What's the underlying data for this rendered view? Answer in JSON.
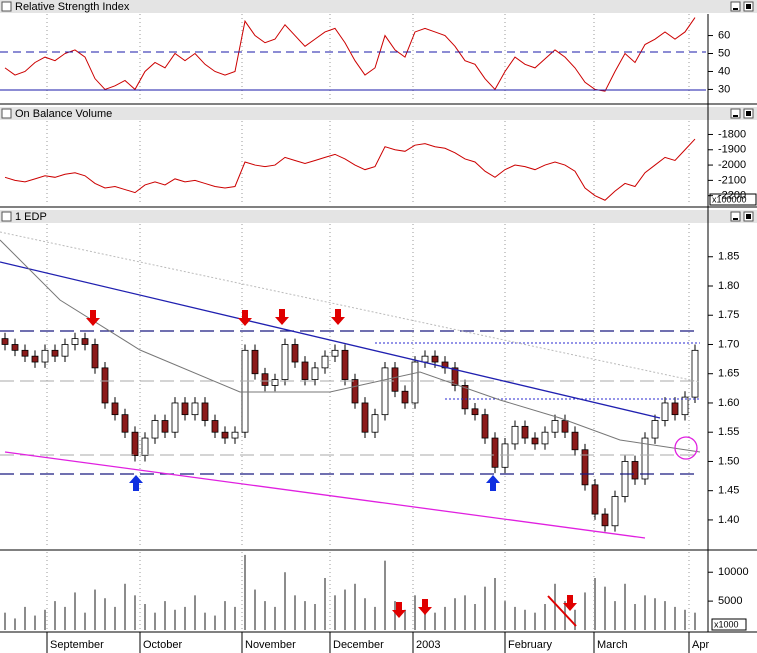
{
  "chart_data": [
    {
      "type": "line",
      "title": "Relative Strength Index",
      "color": "#cc0000",
      "ylim": [
        23,
        72
      ],
      "yticks": [
        30,
        40,
        50,
        60
      ],
      "values": [
        42,
        38,
        40,
        45,
        48,
        46,
        50,
        52,
        48,
        36,
        30,
        32,
        35,
        30,
        40,
        45,
        42,
        50,
        46,
        50,
        44,
        40,
        38,
        40,
        68,
        60,
        56,
        58,
        66,
        60,
        54,
        58,
        62,
        64,
        56,
        46,
        38,
        42,
        60,
        52,
        48,
        62,
        64,
        62,
        60,
        54,
        46,
        44,
        36,
        30,
        40,
        48,
        44,
        42,
        47,
        52,
        48,
        42,
        34,
        30,
        29,
        40,
        50,
        45,
        55,
        58,
        62,
        58,
        62,
        70
      ]
    },
    {
      "type": "line",
      "title": "On Balance Volume",
      "color": "#cc0000",
      "y_unit_label": "x100000",
      "ylim": [
        -2261,
        -1712
      ],
      "yticks": [
        -1800,
        -1900,
        -2000,
        -2100,
        -2200
      ],
      "values": [
        -2080,
        -2100,
        -2110,
        -2090,
        -2070,
        -2080,
        -2060,
        -2050,
        -2070,
        -2120,
        -2150,
        -2140,
        -2160,
        -2180,
        -2130,
        -2110,
        -2130,
        -2090,
        -2110,
        -2100,
        -2120,
        -2140,
        -2150,
        -2140,
        -1980,
        -2000,
        -2010,
        -2000,
        -1950,
        -1970,
        -1990,
        -1970,
        -1950,
        -1930,
        -1960,
        -2000,
        -2030,
        -2010,
        -1880,
        -1900,
        -1910,
        -1870,
        -1860,
        -1880,
        -1890,
        -1920,
        -1960,
        -1980,
        -2040,
        -2080,
        -2030,
        -2000,
        -2010,
        -2030,
        -2000,
        -1980,
        -2000,
        -2040,
        -2150,
        -2200,
        -2230,
        -2170,
        -2120,
        -2140,
        -2050,
        -2000,
        -1950,
        -1970,
        -1900,
        -1830
      ]
    },
    {
      "type": "candlestick",
      "title": "1 EDP",
      "up_color": "#ffffff",
      "down_color": "#8b1a1a",
      "ylim": [
        1.352,
        1.906
      ],
      "yticks": [
        {
          "value": 1.4,
          "label": "1.40"
        },
        1.45,
        {
          "value": 1.5,
          "label": "1.50"
        },
        1.55,
        {
          "value": 1.6,
          "label": "1.60"
        },
        1.65,
        {
          "value": 1.7,
          "label": "1.70"
        },
        1.75,
        {
          "value": 1.8,
          "label": "1.80"
        },
        1.85
      ],
      "open": [
        1.71,
        1.7,
        1.69,
        1.68,
        1.67,
        1.69,
        1.68,
        1.7,
        1.71,
        1.7,
        1.66,
        1.6,
        1.58,
        1.55,
        1.51,
        1.54,
        1.57,
        1.55,
        1.6,
        1.58,
        1.6,
        1.57,
        1.55,
        1.54,
        1.55,
        1.69,
        1.65,
        1.63,
        1.64,
        1.7,
        1.67,
        1.64,
        1.66,
        1.68,
        1.69,
        1.64,
        1.6,
        1.55,
        1.58,
        1.66,
        1.62,
        1.6,
        1.67,
        1.68,
        1.67,
        1.66,
        1.63,
        1.59,
        1.58,
        1.54,
        1.49,
        1.53,
        1.56,
        1.54,
        1.53,
        1.55,
        1.57,
        1.55,
        1.52,
        1.46,
        1.41,
        1.39,
        1.44,
        1.5,
        1.47,
        1.54,
        1.57,
        1.6,
        1.58,
        1.61
      ],
      "high": [
        1.72,
        1.71,
        1.7,
        1.69,
        1.7,
        1.7,
        1.71,
        1.72,
        1.72,
        1.71,
        1.67,
        1.61,
        1.59,
        1.56,
        1.55,
        1.58,
        1.58,
        1.61,
        1.61,
        1.61,
        1.61,
        1.58,
        1.56,
        1.56,
        1.7,
        1.7,
        1.66,
        1.65,
        1.71,
        1.71,
        1.68,
        1.67,
        1.69,
        1.7,
        1.7,
        1.65,
        1.61,
        1.59,
        1.67,
        1.67,
        1.63,
        1.68,
        1.69,
        1.69,
        1.68,
        1.67,
        1.64,
        1.6,
        1.59,
        1.55,
        1.54,
        1.57,
        1.57,
        1.55,
        1.56,
        1.58,
        1.58,
        1.56,
        1.53,
        1.47,
        1.42,
        1.45,
        1.51,
        1.51,
        1.55,
        1.58,
        1.61,
        1.61,
        1.62,
        1.7
      ],
      "low": [
        1.69,
        1.68,
        1.67,
        1.66,
        1.66,
        1.67,
        1.67,
        1.69,
        1.69,
        1.65,
        1.59,
        1.57,
        1.54,
        1.5,
        1.5,
        1.53,
        1.54,
        1.54,
        1.57,
        1.57,
        1.56,
        1.54,
        1.53,
        1.53,
        1.54,
        1.64,
        1.62,
        1.62,
        1.63,
        1.66,
        1.63,
        1.63,
        1.65,
        1.67,
        1.63,
        1.59,
        1.54,
        1.54,
        1.57,
        1.61,
        1.59,
        1.59,
        1.66,
        1.66,
        1.65,
        1.62,
        1.58,
        1.57,
        1.53,
        1.48,
        1.48,
        1.52,
        1.53,
        1.52,
        1.52,
        1.54,
        1.54,
        1.51,
        1.45,
        1.4,
        1.38,
        1.38,
        1.43,
        1.46,
        1.46,
        1.53,
        1.56,
        1.57,
        1.57,
        1.6
      ],
      "close": [
        1.7,
        1.69,
        1.68,
        1.67,
        1.69,
        1.68,
        1.7,
        1.71,
        1.7,
        1.66,
        1.6,
        1.58,
        1.55,
        1.51,
        1.54,
        1.57,
        1.55,
        1.6,
        1.58,
        1.6,
        1.57,
        1.55,
        1.54,
        1.55,
        1.69,
        1.65,
        1.63,
        1.64,
        1.7,
        1.67,
        1.64,
        1.66,
        1.68,
        1.69,
        1.64,
        1.6,
        1.55,
        1.58,
        1.66,
        1.62,
        1.6,
        1.67,
        1.68,
        1.67,
        1.66,
        1.63,
        1.59,
        1.58,
        1.54,
        1.49,
        1.53,
        1.56,
        1.54,
        1.53,
        1.55,
        1.57,
        1.55,
        1.52,
        1.46,
        1.41,
        1.39,
        1.44,
        1.5,
        1.47,
        1.54,
        1.57,
        1.6,
        1.58,
        1.61,
        1.69
      ]
    },
    {
      "type": "bar",
      "color": "#8c8c8c",
      "y_unit_label": "x1000",
      "ylim": [
        0,
        13500
      ],
      "yticks": [
        5000,
        10000
      ],
      "xticks": [
        {
          "value": 4.2,
          "label": "September"
        },
        {
          "value": 13.5,
          "label": "October"
        },
        {
          "value": 23.7,
          "label": "November"
        },
        {
          "value": 32.5,
          "label": "December"
        },
        {
          "value": 40.8,
          "label": "2003"
        },
        {
          "value": 50,
          "label": "February"
        },
        {
          "value": 58.9,
          "label": "March"
        },
        {
          "value": 68.4,
          "label": "Apr"
        }
      ],
      "values": [
        3000,
        2000,
        4000,
        2500,
        3500,
        5000,
        4000,
        6500,
        3000,
        7000,
        5500,
        4000,
        8000,
        6000,
        4500,
        3000,
        5000,
        3500,
        4000,
        6000,
        3000,
        2500,
        5000,
        4000,
        13000,
        7000,
        5000,
        4000,
        10000,
        6000,
        5000,
        4500,
        9000,
        6000,
        7000,
        8000,
        5500,
        4000,
        12000,
        5000,
        3500,
        6000,
        5000,
        3000,
        4000,
        5500,
        6000,
        4500,
        7500,
        9000,
        5000,
        4000,
        3500,
        3000,
        4500,
        8000,
        5000,
        3500,
        6500,
        9000,
        7500,
        5000,
        8000,
        4500,
        6000,
        5500,
        5000,
        4000,
        3500,
        3000
      ]
    }
  ]
}
